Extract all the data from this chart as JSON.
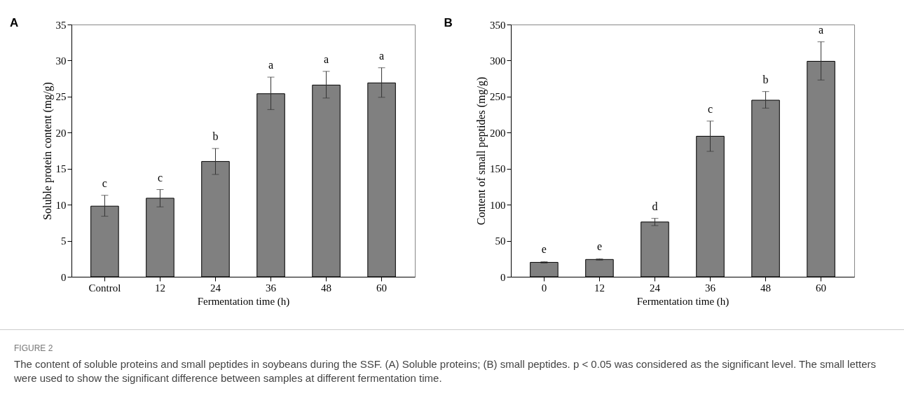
{
  "chart_data": [
    {
      "type": "bar",
      "title": "A",
      "xlabel": "Fermentation time (h)",
      "ylabel": "Soluble protein content (mg/g)",
      "categories": [
        "Control",
        "12",
        "24",
        "36",
        "48",
        "60"
      ],
      "color": "#808080",
      "values": [
        9.8,
        10.9,
        16.0,
        25.4,
        26.6,
        26.9
      ],
      "errors": [
        [
          8.4,
          11.3
        ],
        [
          9.7,
          12.1
        ],
        [
          14.2,
          17.8
        ],
        [
          23.2,
          27.7
        ],
        [
          24.8,
          28.5
        ],
        [
          24.9,
          29.0
        ]
      ],
      "ylim": [
        0,
        35
      ],
      "yticks": [
        0,
        5,
        10,
        15,
        20,
        25,
        30,
        35
      ],
      "grid": false,
      "annotations": [
        {
          "text": "c",
          "x": "Control",
          "y": 11.3
        },
        {
          "text": "c",
          "x": "12",
          "y": 12.1
        },
        {
          "text": "b",
          "x": "24",
          "y": 17.8
        },
        {
          "text": "a",
          "x": "36",
          "y": 27.7
        },
        {
          "text": "a",
          "x": "48",
          "y": 28.5
        },
        {
          "text": "a",
          "x": "60",
          "y": 29.0
        },
        "FIGURE 2",
        "The content of soluble proteins and small peptides in soybeans during the SSF. (A) Soluble proteins; (B) small peptides. p < 0.05 was considered as the significant level. The small letters were used to show the significant difference between samples at different fermentation time."
      ]
    },
    {
      "type": "bar",
      "title": "B",
      "xlabel": "Fermentation time (h)",
      "ylabel": "Content of small peptides  (mg/g)",
      "categories": [
        "0",
        "12",
        "24",
        "36",
        "48",
        "60"
      ],
      "color": "#808080",
      "values": [
        20,
        24,
        76,
        195,
        245,
        299
      ],
      "errors": [
        [
          19,
          21
        ],
        [
          23,
          25
        ],
        [
          71,
          81
        ],
        [
          174,
          216
        ],
        [
          234,
          257
        ],
        [
          273,
          326
        ]
      ],
      "ylim": [
        0,
        350
      ],
      "yticks": [
        0,
        50,
        100,
        150,
        200,
        250,
        300,
        350
      ],
      "grid": false,
      "annotations": [
        {
          "text": "e",
          "x": "0",
          "y": 21
        },
        {
          "text": "e",
          "x": "12",
          "y": 25
        },
        {
          "text": "d",
          "x": "24",
          "y": 81
        },
        {
          "text": "c",
          "x": "36",
          "y": 216
        },
        {
          "text": "b",
          "x": "48",
          "y": 257
        },
        {
          "text": "a",
          "x": "60",
          "y": 326
        }
      ]
    }
  ]
}
